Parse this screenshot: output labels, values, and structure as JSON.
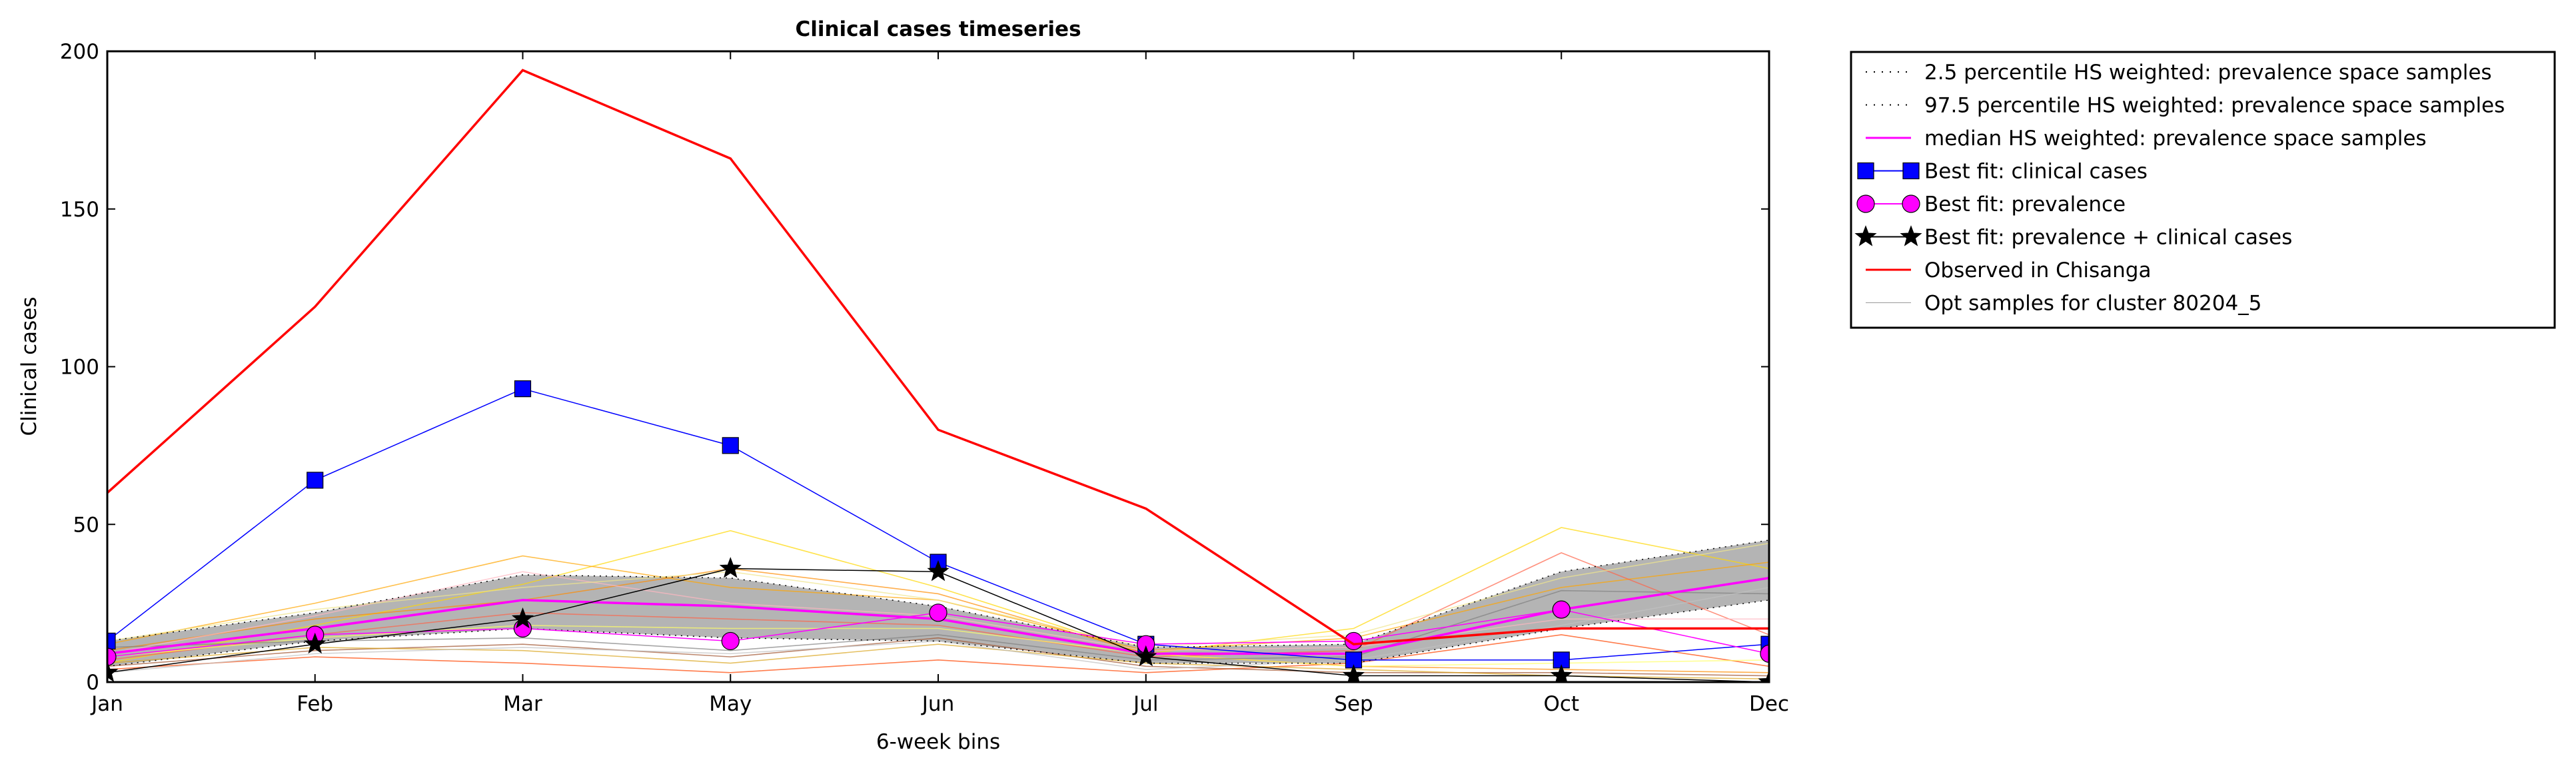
{
  "chart_data": {
    "type": "line",
    "title": "Clinical cases timeseries",
    "xlabel": "6-week bins",
    "ylabel": "Clinical cases",
    "categories": [
      "Jan",
      "Feb",
      "Mar",
      "May",
      "Jun",
      "Jul",
      "Sep",
      "Oct",
      "Dec"
    ],
    "ylim": [
      0,
      200
    ],
    "yticks": [
      0,
      50,
      100,
      150,
      200
    ],
    "grid": false,
    "legend_position": "outside-top-right",
    "band": {
      "lower": [
        5,
        13,
        17,
        14,
        13,
        6,
        6,
        17,
        26
      ],
      "upper": [
        13,
        22,
        34,
        33,
        24,
        11,
        12,
        35,
        45
      ],
      "color": "#b4b4b4"
    },
    "legend": [
      {
        "label": "2.5 percentile HS weighted: prevalence space samples",
        "style": "dotted",
        "color": "#000000"
      },
      {
        "label": "97.5 percentile HS weighted: prevalence space samples",
        "style": "dotted",
        "color": "#000000"
      },
      {
        "label": "median HS weighted: prevalence space samples",
        "style": "line",
        "color": "#ff00ff",
        "width": 3
      },
      {
        "label": "Best fit: clinical cases",
        "style": "line-marker",
        "marker": "square",
        "color": "#0000ff"
      },
      {
        "label": "Best fit: prevalence",
        "style": "line-marker",
        "marker": "circle",
        "color": "#ff00ff"
      },
      {
        "label": "Best fit: prevalence + clinical cases",
        "style": "line-marker",
        "marker": "star",
        "color": "#000000"
      },
      {
        "label": "Observed in Chisanga",
        "style": "line",
        "color": "#ff0000",
        "width": 3
      },
      {
        "label": "Opt samples for cluster 80204_5",
        "style": "line",
        "color": "#999999",
        "width": 1
      }
    ],
    "series": [
      {
        "name": "2.5 percentile HS weighted: prevalence space samples",
        "style": "dotted",
        "color": "#000000",
        "width": 1.5,
        "values": [
          5,
          13,
          17,
          14,
          13,
          6,
          6,
          17,
          26
        ]
      },
      {
        "name": "97.5 percentile HS weighted: prevalence space samples",
        "style": "dotted",
        "color": "#000000",
        "width": 1.5,
        "values": [
          13,
          22,
          34,
          33,
          24,
          11,
          12,
          35,
          45
        ]
      },
      {
        "name": "median HS weighted: prevalence space samples",
        "style": "line",
        "color": "#ff00ff",
        "width": 3.5,
        "values": [
          9,
          17,
          26,
          24,
          20,
          9,
          9,
          23,
          33
        ]
      },
      {
        "name": "Best fit: clinical cases",
        "style": "line-marker",
        "marker": "square",
        "color": "#0000ff",
        "width": 1.5,
        "values": [
          13,
          64,
          93,
          75,
          38,
          12,
          7,
          7,
          12
        ]
      },
      {
        "name": "Best fit: prevalence",
        "style": "line-marker",
        "marker": "circle",
        "color": "#ff00ff",
        "width": 1.5,
        "values": [
          8,
          15,
          17,
          13,
          22,
          12,
          13,
          23,
          9
        ]
      },
      {
        "name": "Best fit: prevalence + clinical cases",
        "style": "line-marker",
        "marker": "star",
        "color": "#000000",
        "width": 1.5,
        "values": [
          3,
          12,
          20,
          36,
          35,
          8,
          2,
          2,
          0
        ]
      },
      {
        "name": "Observed in Chisanga",
        "style": "line",
        "color": "#ff0000",
        "width": 3.5,
        "values": [
          60,
          119,
          194,
          166,
          80,
          55,
          12,
          17,
          17
        ]
      }
    ],
    "samples": [
      {
        "color": "#ffd700",
        "values": [
          6,
          18,
          31,
          48,
          30,
          9,
          17,
          49,
          36
        ]
      },
      {
        "color": "#ffa500",
        "values": [
          12,
          25,
          40,
          30,
          26,
          10,
          14,
          30,
          38
        ]
      },
      {
        "color": "#ff8c00",
        "values": [
          10,
          20,
          26,
          36,
          28,
          9,
          5,
          4,
          3
        ]
      },
      {
        "color": "#ff6347",
        "values": [
          7,
          15,
          22,
          20,
          18,
          8,
          10,
          41,
          15
        ]
      },
      {
        "color": "#ff4500",
        "values": [
          4,
          8,
          6,
          3,
          7,
          3,
          6,
          15,
          5
        ]
      },
      {
        "color": "#ffff66",
        "values": [
          8,
          14,
          18,
          17,
          17,
          9,
          5,
          6,
          7
        ]
      },
      {
        "color": "#808080",
        "values": [
          11,
          13,
          14,
          10,
          15,
          7,
          8,
          29,
          28
        ]
      },
      {
        "color": "#a0522d",
        "values": [
          5,
          10,
          12,
          8,
          14,
          5,
          3,
          3,
          2
        ]
      },
      {
        "color": "#ffb6c1",
        "values": [
          9,
          21,
          35,
          25,
          21,
          10,
          11,
          20,
          20
        ]
      },
      {
        "color": "#daa520",
        "values": [
          6,
          11,
          10,
          6,
          12,
          6,
          4,
          2,
          1
        ]
      },
      {
        "color": "#f0e68c",
        "values": [
          13,
          23,
          30,
          35,
          26,
          11,
          15,
          33,
          44
        ]
      },
      {
        "color": "#c0c0c0",
        "values": [
          3,
          9,
          11,
          9,
          13,
          4,
          7,
          18,
          30
        ]
      }
    ]
  }
}
